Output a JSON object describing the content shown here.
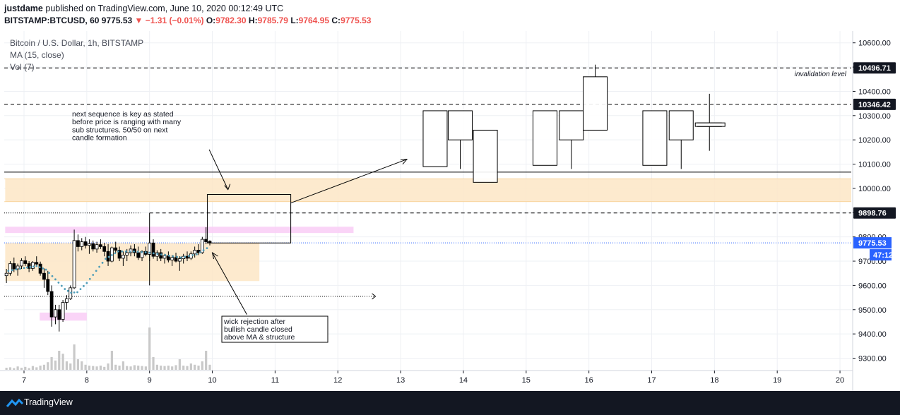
{
  "header": {
    "author": "justdame",
    "published_text": "published on TradingView.com, June 10, 2020 00:12:49 UTC",
    "symbol_line": "BITSTAMP:BTCUSD, 60",
    "last_price": "9775.53",
    "change": "−1.31 (−0.01%)",
    "o_label": "O:",
    "o_value": "9782.30",
    "h_label": "H:",
    "h_value": "9785.79",
    "l_label": "L:",
    "l_value": "9764.95",
    "c_label": "C:",
    "c_value": "9775.53"
  },
  "legend": {
    "title": "Bitcoin / U.S. Dollar, 1h, BITSTAMP",
    "ma": "MA (15, close)",
    "vol": "Vol (7)"
  },
  "footer": {
    "brand": "TradingView"
  },
  "colors": {
    "up": "#000000",
    "down": "#000000",
    "ma": "#4f9db8",
    "zone_orange": "#fde6c6",
    "zone_pink": "#f9ccf6",
    "price_badge": "#2962ff",
    "level_badge": "#131722",
    "volume": "#c9c9c9"
  },
  "chart_data": {
    "type": "candlestick",
    "title": "Bitcoin / U.S. Dollar, 1h, BITSTAMP",
    "price_axis": {
      "ticks": [
        10600,
        10500,
        10400,
        10300,
        10200,
        10100,
        10000,
        9900,
        9800,
        9700,
        9600,
        9500,
        9400,
        9300
      ],
      "tick_labels": [
        "10600.00",
        "10500.00",
        "10400.00",
        "10300.00",
        "10200.00",
        "10100.00",
        "10000.00",
        "9900.00",
        "9800.00",
        "9700.00",
        "9600.00",
        "9500.00",
        "9400.00",
        "9300.00"
      ],
      "ylim": [
        9260,
        10660
      ]
    },
    "time_axis": {
      "labels": [
        "7",
        "8",
        "9",
        "10",
        "11",
        "12",
        "13",
        "14",
        "15",
        "16",
        "17",
        "18",
        "19",
        "20"
      ],
      "xlim": [
        6.7,
        20.2
      ]
    },
    "current_price": {
      "value": 9775.53,
      "label": "9775.53",
      "countdown": "47:12"
    },
    "levels": [
      {
        "name": "invalidation",
        "value": 10496.71,
        "label": "10496.71",
        "text": "invalidation level",
        "style": "dashed"
      },
      {
        "name": "upper",
        "value": 10346.42,
        "label": "10346.42",
        "style": "dashed"
      },
      {
        "name": "solid",
        "value": 10067,
        "style": "solid"
      },
      {
        "name": "lower",
        "value": 9898.76,
        "label": "9898.76",
        "style": "dashed"
      }
    ],
    "zones": [
      {
        "name": "resistance-zone",
        "x": [
          6.7,
          20.2
        ],
        "y": [
          9945,
          10040
        ],
        "color": "#fde6c6"
      },
      {
        "name": "range-zone",
        "x": [
          6.7,
          10.75
        ],
        "y": [
          9618,
          9775
        ],
        "color": "#fde6c6"
      },
      {
        "name": "pink-zone-upper",
        "x": [
          6.7,
          12.25
        ],
        "y": [
          9816,
          9842
        ],
        "color": "#f9ccf6"
      },
      {
        "name": "pink-zone-lower",
        "x": [
          7.25,
          8.0
        ],
        "y": [
          9455,
          9488
        ],
        "color": "#f9ccf6"
      }
    ],
    "candles": [
      {
        "t": 6.72,
        "o": 9640,
        "h": 9668,
        "l": 9610,
        "c": 9650
      },
      {
        "t": 6.78,
        "o": 9650,
        "h": 9700,
        "l": 9640,
        "c": 9690
      },
      {
        "t": 6.84,
        "o": 9690,
        "h": 9715,
        "l": 9655,
        "c": 9668
      },
      {
        "t": 6.9,
        "o": 9668,
        "h": 9690,
        "l": 9640,
        "c": 9680
      },
      {
        "t": 6.96,
        "o": 9680,
        "h": 9712,
        "l": 9668,
        "c": 9702
      },
      {
        "t": 7.02,
        "o": 9702,
        "h": 9720,
        "l": 9680,
        "c": 9690
      },
      {
        "t": 7.08,
        "o": 9690,
        "h": 9700,
        "l": 9655,
        "c": 9670
      },
      {
        "t": 7.14,
        "o": 9670,
        "h": 9700,
        "l": 9660,
        "c": 9695
      },
      {
        "t": 7.2,
        "o": 9695,
        "h": 9720,
        "l": 9680,
        "c": 9688
      },
      {
        "t": 7.26,
        "o": 9688,
        "h": 9698,
        "l": 9640,
        "c": 9650
      },
      {
        "t": 7.32,
        "o": 9650,
        "h": 9670,
        "l": 9590,
        "c": 9625
      },
      {
        "t": 7.38,
        "o": 9625,
        "h": 9660,
        "l": 9560,
        "c": 9575
      },
      {
        "t": 7.44,
        "o": 9575,
        "h": 9600,
        "l": 9430,
        "c": 9470
      },
      {
        "t": 7.5,
        "o": 9470,
        "h": 9520,
        "l": 9440,
        "c": 9500
      },
      {
        "t": 7.56,
        "o": 9500,
        "h": 9520,
        "l": 9410,
        "c": 9460
      },
      {
        "t": 7.62,
        "o": 9460,
        "h": 9540,
        "l": 9450,
        "c": 9530
      },
      {
        "t": 7.68,
        "o": 9530,
        "h": 9560,
        "l": 9500,
        "c": 9545
      },
      {
        "t": 7.74,
        "o": 9545,
        "h": 9600,
        "l": 9540,
        "c": 9590
      },
      {
        "t": 7.8,
        "o": 9590,
        "h": 9830,
        "l": 9585,
        "c": 9785
      },
      {
        "t": 7.86,
        "o": 9785,
        "h": 9810,
        "l": 9740,
        "c": 9760
      },
      {
        "t": 7.92,
        "o": 9760,
        "h": 9795,
        "l": 9745,
        "c": 9780
      },
      {
        "t": 7.98,
        "o": 9780,
        "h": 9800,
        "l": 9752,
        "c": 9765
      },
      {
        "t": 8.04,
        "o": 9765,
        "h": 9790,
        "l": 9730,
        "c": 9772
      },
      {
        "t": 8.1,
        "o": 9772,
        "h": 9785,
        "l": 9740,
        "c": 9750
      },
      {
        "t": 8.16,
        "o": 9750,
        "h": 9780,
        "l": 9735,
        "c": 9768
      },
      {
        "t": 8.22,
        "o": 9768,
        "h": 9790,
        "l": 9750,
        "c": 9760
      },
      {
        "t": 8.28,
        "o": 9760,
        "h": 9775,
        "l": 9720,
        "c": 9740
      },
      {
        "t": 8.34,
        "o": 9740,
        "h": 9770,
        "l": 9680,
        "c": 9700
      },
      {
        "t": 8.4,
        "o": 9700,
        "h": 9760,
        "l": 9695,
        "c": 9755
      },
      {
        "t": 8.46,
        "o": 9755,
        "h": 9780,
        "l": 9735,
        "c": 9745
      },
      {
        "t": 8.52,
        "o": 9745,
        "h": 9760,
        "l": 9700,
        "c": 9712
      },
      {
        "t": 8.58,
        "o": 9712,
        "h": 9740,
        "l": 9680,
        "c": 9725
      },
      {
        "t": 8.64,
        "o": 9725,
        "h": 9750,
        "l": 9700,
        "c": 9735
      },
      {
        "t": 8.7,
        "o": 9735,
        "h": 9765,
        "l": 9720,
        "c": 9750
      },
      {
        "t": 8.76,
        "o": 9750,
        "h": 9770,
        "l": 9720,
        "c": 9735
      },
      {
        "t": 8.82,
        "o": 9735,
        "h": 9760,
        "l": 9705,
        "c": 9715
      },
      {
        "t": 8.88,
        "o": 9715,
        "h": 9745,
        "l": 9700,
        "c": 9740
      },
      {
        "t": 8.94,
        "o": 9740,
        "h": 9760,
        "l": 9720,
        "c": 9728
      },
      {
        "t": 9.0,
        "o": 9728,
        "h": 9820,
        "l": 9600,
        "c": 9775
      },
      {
        "t": 9.06,
        "o": 9775,
        "h": 9790,
        "l": 9710,
        "c": 9720
      },
      {
        "t": 9.12,
        "o": 9720,
        "h": 9745,
        "l": 9700,
        "c": 9735
      },
      {
        "t": 9.18,
        "o": 9735,
        "h": 9750,
        "l": 9700,
        "c": 9712
      },
      {
        "t": 9.24,
        "o": 9712,
        "h": 9730,
        "l": 9690,
        "c": 9722
      },
      {
        "t": 9.3,
        "o": 9722,
        "h": 9740,
        "l": 9695,
        "c": 9705
      },
      {
        "t": 9.36,
        "o": 9705,
        "h": 9725,
        "l": 9680,
        "c": 9715
      },
      {
        "t": 9.42,
        "o": 9715,
        "h": 9735,
        "l": 9695,
        "c": 9700
      },
      {
        "t": 9.48,
        "o": 9700,
        "h": 9720,
        "l": 9660,
        "c": 9710
      },
      {
        "t": 9.54,
        "o": 9710,
        "h": 9730,
        "l": 9690,
        "c": 9720
      },
      {
        "t": 9.6,
        "o": 9720,
        "h": 9740,
        "l": 9700,
        "c": 9712
      },
      {
        "t": 9.66,
        "o": 9712,
        "h": 9740,
        "l": 9705,
        "c": 9730
      },
      {
        "t": 9.72,
        "o": 9730,
        "h": 9760,
        "l": 9715,
        "c": 9745
      },
      {
        "t": 9.78,
        "o": 9745,
        "h": 9770,
        "l": 9725,
        "c": 9735
      },
      {
        "t": 9.84,
        "o": 9735,
        "h": 9800,
        "l": 9730,
        "c": 9790
      },
      {
        "t": 9.9,
        "o": 9790,
        "h": 9840,
        "l": 9770,
        "c": 9780
      },
      {
        "t": 9.96,
        "o": 9782,
        "h": 9786,
        "l": 9765,
        "c": 9776
      }
    ],
    "ma_line": [
      {
        "t": 6.75,
        "v": 9660
      },
      {
        "t": 7.0,
        "v": 9672
      },
      {
        "t": 7.2,
        "v": 9680
      },
      {
        "t": 7.35,
        "v": 9665
      },
      {
        "t": 7.5,
        "v": 9625
      },
      {
        "t": 7.65,
        "v": 9585
      },
      {
        "t": 7.75,
        "v": 9570
      },
      {
        "t": 7.85,
        "v": 9572
      },
      {
        "t": 8.0,
        "v": 9610
      },
      {
        "t": 8.15,
        "v": 9660
      },
      {
        "t": 8.3,
        "v": 9710
      },
      {
        "t": 8.5,
        "v": 9740
      },
      {
        "t": 8.75,
        "v": 9740
      },
      {
        "t": 9.0,
        "v": 9735
      },
      {
        "t": 9.25,
        "v": 9725
      },
      {
        "t": 9.5,
        "v": 9715
      },
      {
        "t": 9.75,
        "v": 9728
      },
      {
        "t": 9.97,
        "v": 9762
      }
    ],
    "volume_bars_relative": [
      0.05,
      0.06,
      0.04,
      0.08,
      0.05,
      0.07,
      0.04,
      0.09,
      0.06,
      0.1,
      0.12,
      0.18,
      0.3,
      0.22,
      0.45,
      0.38,
      0.2,
      0.15,
      0.6,
      0.25,
      0.2,
      0.12,
      0.1,
      0.09,
      0.08,
      0.1,
      0.07,
      0.15,
      0.45,
      0.12,
      0.1,
      0.2,
      0.09,
      0.08,
      0.11,
      0.1,
      0.09,
      0.08,
      1.0,
      0.3,
      0.12,
      0.1,
      0.09,
      0.1,
      0.08,
      0.11,
      0.25,
      0.1,
      0.09,
      0.15,
      0.12,
      0.1,
      0.2,
      0.45,
      0.12
    ],
    "projected_candles": [
      {
        "t": 13.55,
        "o": 10090,
        "h": 10320,
        "l": 10090,
        "c": 10320
      },
      {
        "t": 13.95,
        "o": 10320,
        "h": 10320,
        "l": 10080,
        "c": 10200
      },
      {
        "t": 14.35,
        "o": 10240,
        "h": 10240,
        "l": 10025,
        "c": 10025
      },
      {
        "t": 15.3,
        "o": 10095,
        "h": 10320,
        "l": 10095,
        "c": 10320
      },
      {
        "t": 15.72,
        "o": 10320,
        "h": 10320,
        "l": 10080,
        "c": 10200
      },
      {
        "t": 16.1,
        "o": 10240,
        "h": 10510,
        "l": 10240,
        "c": 10460
      },
      {
        "t": 17.05,
        "o": 10095,
        "h": 10320,
        "l": 10095,
        "c": 10320
      },
      {
        "t": 17.47,
        "o": 10320,
        "h": 10320,
        "l": 10080,
        "c": 10200
      },
      {
        "t": 17.92,
        "o": 10255,
        "h": 10390,
        "l": 10155,
        "c": 10270
      }
    ],
    "annotations": [
      {
        "name": "sequence-note",
        "lines": [
          "next sequence is key as stated",
          "before price is ranging with many",
          "sub structures. 50/50 on next",
          "candle formation"
        ]
      },
      {
        "name": "wick-note",
        "lines": [
          "wick rejection after",
          "bullish candle closed",
          "above MA & structure"
        ]
      }
    ]
  }
}
